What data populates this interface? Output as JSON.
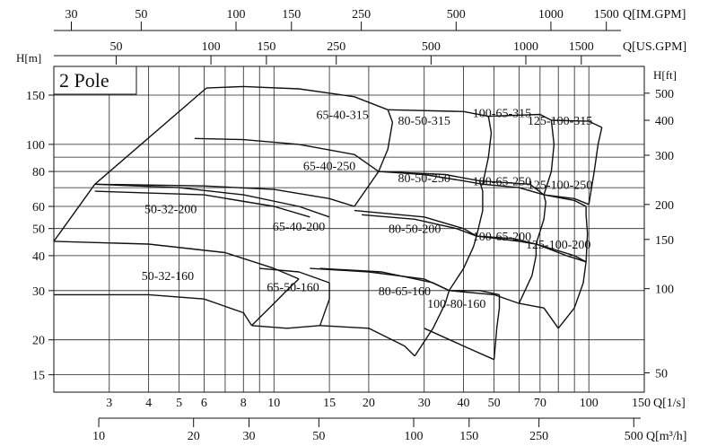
{
  "chart_data": {
    "type": "area",
    "title": "",
    "label": "2 Pole",
    "log_scale": true,
    "x_primary": {
      "label": "Q[1/s]",
      "lim": [
        2,
        150
      ],
      "ticks": [
        {
          "v": 3,
          "t": "3"
        },
        {
          "v": 4,
          "t": "4"
        },
        {
          "v": 5,
          "t": "5"
        },
        {
          "v": 6,
          "t": "6"
        },
        {
          "v": 8,
          "t": "8"
        },
        {
          "v": 10,
          "t": "10"
        },
        {
          "v": 15,
          "t": "15"
        },
        {
          "v": 20,
          "t": "20"
        },
        {
          "v": 30,
          "t": "30"
        },
        {
          "v": 40,
          "t": "40"
        },
        {
          "v": 50,
          "t": "50"
        },
        {
          "v": 70,
          "t": "70"
        },
        {
          "v": 100,
          "t": "100"
        },
        {
          "v": 150,
          "t": "150"
        }
      ],
      "grid": [
        3,
        4,
        5,
        6,
        7,
        8,
        9,
        10,
        15,
        20,
        30,
        40,
        50,
        60,
        70,
        80,
        90,
        100
      ]
    },
    "x_m3h": {
      "label": "Q[m³/h]",
      "ticks": [
        {
          "v": 10,
          "t": "10"
        },
        {
          "v": 20,
          "t": "20"
        },
        {
          "v": 30,
          "t": "30"
        },
        {
          "v": 50,
          "t": "50"
        },
        {
          "v": 100,
          "t": "100"
        },
        {
          "v": 150,
          "t": "150"
        },
        {
          "v": 250,
          "t": "250"
        },
        {
          "v": 500,
          "t": "500"
        }
      ]
    },
    "x_usgpm": {
      "label": "Q[US.GPM]",
      "ticks": [
        {
          "v": 50,
          "t": "50"
        },
        {
          "v": 100,
          "t": "100"
        },
        {
          "v": 150,
          "t": "150"
        },
        {
          "v": 250,
          "t": "250"
        },
        {
          "v": 500,
          "t": "500"
        },
        {
          "v": 1000,
          "t": "1000"
        },
        {
          "v": 1500,
          "t": "1500"
        }
      ]
    },
    "x_imgpm": {
      "label": "Q[IM.GPM]",
      "ticks": [
        {
          "v": 30,
          "t": "30"
        },
        {
          "v": 50,
          "t": "50"
        },
        {
          "v": 100,
          "t": "100"
        },
        {
          "v": 150,
          "t": "150"
        },
        {
          "v": 250,
          "t": "250"
        },
        {
          "v": 500,
          "t": "500"
        },
        {
          "v": 1000,
          "t": "1000"
        },
        {
          "v": 1500,
          "t": "1500"
        }
      ]
    },
    "y_primary": {
      "label": "H[m]",
      "lim": [
        13,
        190
      ],
      "ticks": [
        {
          "v": 15,
          "t": "15"
        },
        {
          "v": 20,
          "t": "20"
        },
        {
          "v": 30,
          "t": "30"
        },
        {
          "v": 40,
          "t": "40"
        },
        {
          "v": 50,
          "t": "50"
        },
        {
          "v": 60,
          "t": "60"
        },
        {
          "v": 80,
          "t": "80"
        },
        {
          "v": 100,
          "t": "100"
        },
        {
          "v": 150,
          "t": "150"
        }
      ],
      "grid": [
        15,
        20,
        30,
        40,
        50,
        60,
        70,
        80,
        90,
        100,
        150
      ]
    },
    "y_ft": {
      "label": "H[ft]",
      "ticks": [
        {
          "v": 50,
          "t": "50"
        },
        {
          "v": 100,
          "t": "100"
        },
        {
          "v": 150,
          "t": "150"
        },
        {
          "v": 200,
          "t": "200"
        },
        {
          "v": 300,
          "t": "300"
        },
        {
          "v": 400,
          "t": "400"
        },
        {
          "v": 500,
          "t": "500"
        }
      ]
    },
    "series": [
      {
        "name": "65-40-315",
        "label_at": [
          16.5,
          128
        ],
        "top": [
          [
            6.1,
            159
          ],
          [
            8,
            161
          ],
          [
            12,
            158
          ],
          [
            18,
            148
          ],
          [
            23,
            133
          ]
        ],
        "left": [
          [
            6.1,
            159
          ],
          [
            2.7,
            72
          ]
        ],
        "bottom": [
          [
            2.7,
            72
          ],
          [
            6,
            71
          ],
          [
            10,
            69
          ],
          [
            15,
            64
          ],
          [
            18,
            60
          ]
        ],
        "right": [
          [
            18,
            60
          ],
          [
            21.5,
            80
          ],
          [
            23,
            96
          ],
          [
            23.8,
            120
          ],
          [
            23,
            133
          ]
        ]
      },
      {
        "name": "80-50-315",
        "label_at": [
          30,
          122
        ],
        "top": [
          [
            23,
            133
          ],
          [
            40,
            131
          ],
          [
            48,
            126
          ]
        ],
        "left": [],
        "bottom": [
          [
            21.5,
            80
          ],
          [
            30,
            78
          ],
          [
            40,
            74
          ],
          [
            46,
            72
          ]
        ],
        "right": [
          [
            46,
            72
          ],
          [
            48,
            90
          ],
          [
            49,
            110
          ],
          [
            48,
            126
          ]
        ]
      },
      {
        "name": "100-65-315",
        "label_at": [
          53,
          130
        ],
        "top": [
          [
            48,
            126
          ],
          [
            70,
            128
          ],
          [
            76,
            122
          ]
        ],
        "left": [],
        "bottom": [
          [
            46,
            72
          ],
          [
            60,
            70
          ],
          [
            72,
            66
          ]
        ],
        "right": [
          [
            72,
            66
          ],
          [
            76,
            80
          ],
          [
            77.5,
            100
          ],
          [
            76,
            122
          ]
        ]
      },
      {
        "name": "125-100-315",
        "label_at": [
          81,
          122
        ],
        "top": [
          [
            76,
            122
          ],
          [
            100,
            121
          ],
          [
            110,
            115
          ]
        ],
        "left": [],
        "bottom": [
          [
            72,
            66
          ],
          [
            90,
            64
          ],
          [
            100,
            61
          ]
        ],
        "right": [
          [
            100,
            61
          ],
          [
            104,
            80
          ],
          [
            107,
            100
          ],
          [
            110,
            115
          ]
        ]
      },
      {
        "name": "65-40-250",
        "label_at": [
          15,
          84
        ],
        "top": [
          [
            5.6,
            105
          ],
          [
            8,
            104
          ],
          [
            12,
            100
          ],
          [
            18,
            92
          ],
          [
            21.5,
            80
          ]
        ],
        "left": [],
        "bottom": [
          [
            2.7,
            72
          ]
        ],
        "right": []
      },
      {
        "name": "80-50-250",
        "label_at": [
          30,
          76
        ],
        "top": [
          [
            21.5,
            80
          ],
          [
            35,
            78
          ],
          [
            45,
            74
          ]
        ],
        "left": [],
        "bottom": [
          [
            19,
            56
          ],
          [
            28,
            54
          ],
          [
            38,
            50
          ],
          [
            44,
            47
          ]
        ],
        "right": [
          [
            44,
            47
          ],
          [
            46,
            58
          ],
          [
            46,
            68
          ],
          [
            45,
            74
          ]
        ]
      },
      {
        "name": "100-65-250",
        "label_at": [
          53,
          74
        ],
        "top": [
          [
            45,
            74
          ],
          [
            65,
            72
          ],
          [
            72,
            66
          ]
        ],
        "left": [],
        "bottom": [
          [
            44,
            47
          ],
          [
            58,
            46
          ],
          [
            68,
            44
          ]
        ],
        "right": [
          [
            68,
            44
          ],
          [
            72,
            54
          ],
          [
            73,
            62
          ],
          [
            72,
            66
          ]
        ]
      },
      {
        "name": "125-100-250",
        "label_at": [
          81,
          72
        ],
        "top": [
          [
            72,
            66
          ],
          [
            90,
            63
          ],
          [
            98,
            60
          ]
        ],
        "left": [],
        "bottom": [
          [
            68,
            44
          ],
          [
            90,
            40
          ],
          [
            98,
            38
          ]
        ],
        "right": [
          [
            98,
            38
          ],
          [
            99,
            48
          ],
          [
            98,
            56
          ],
          [
            98,
            60
          ]
        ]
      },
      {
        "name": "50-32-200",
        "label_at": [
          4.7,
          59
        ],
        "top": [
          [
            2.7,
            72
          ],
          [
            5,
            70
          ],
          [
            8,
            66
          ],
          [
            12,
            60
          ],
          [
            15,
            55
          ]
        ],
        "left": [
          [
            2.7,
            72
          ],
          [
            2,
            45
          ]
        ],
        "bottom": [
          [
            2,
            45
          ]
        ],
        "right": []
      },
      {
        "name": "65-40-200",
        "label_at": [
          12,
          51
        ],
        "top": [
          [
            2.7,
            68
          ],
          [
            6,
            66
          ],
          [
            10,
            60
          ],
          [
            13,
            55
          ]
        ],
        "left": [],
        "bottom": [],
        "right": []
      },
      {
        "name": "80-50-200",
        "label_at": [
          28,
          50
        ],
        "top": [
          [
            18,
            58
          ],
          [
            30,
            55
          ],
          [
            40,
            50
          ],
          [
            44,
            47
          ]
        ],
        "left": [],
        "bottom": [
          [
            13,
            36
          ],
          [
            20,
            35
          ],
          [
            30,
            33
          ],
          [
            36,
            30
          ]
        ],
        "right": [
          [
            36,
            30
          ],
          [
            40,
            36
          ],
          [
            43,
            43
          ],
          [
            44,
            47
          ]
        ]
      },
      {
        "name": "100-65-200",
        "label_at": [
          53,
          47
        ],
        "top": [
          [
            44,
            47
          ],
          [
            60,
            45
          ],
          [
            68,
            44
          ]
        ],
        "left": [],
        "bottom": [
          [
            36,
            30
          ],
          [
            50,
            29
          ],
          [
            60,
            27
          ]
        ],
        "right": [
          [
            60,
            27
          ],
          [
            66,
            34
          ],
          [
            68,
            40
          ],
          [
            68,
            44
          ]
        ]
      },
      {
        "name": "125-100-200",
        "label_at": [
          80,
          44
        ],
        "top": [
          [
            68,
            44
          ],
          [
            85,
            40
          ],
          [
            98,
            38
          ]
        ],
        "left": [],
        "bottom": [
          [
            60,
            27
          ],
          [
            72,
            26
          ],
          [
            80,
            22
          ]
        ],
        "right": [
          [
            80,
            22
          ],
          [
            90,
            26
          ],
          [
            96,
            32
          ],
          [
            98,
            38
          ]
        ]
      },
      {
        "name": "50-32-160",
        "label_at": [
          4.6,
          34
        ],
        "top": [
          [
            2,
            45
          ],
          [
            4,
            44
          ],
          [
            7,
            41
          ],
          [
            10,
            36
          ],
          [
            12,
            33
          ]
        ],
        "left": [],
        "bottom": [
          [
            2,
            29
          ],
          [
            4,
            29
          ],
          [
            6,
            28
          ],
          [
            8,
            25
          ],
          [
            8.5,
            22.5
          ]
        ],
        "right": [
          [
            8.5,
            22.5
          ],
          [
            10,
            27
          ],
          [
            11.3,
            31
          ],
          [
            12,
            33
          ]
        ]
      },
      {
        "name": "65-50-160",
        "label_at": [
          11.5,
          31
        ],
        "top": [
          [
            9,
            36
          ],
          [
            12,
            35
          ],
          [
            15,
            32
          ]
        ],
        "left": [],
        "bottom": [
          [
            8.5,
            22.5
          ],
          [
            11,
            22
          ],
          [
            14,
            22.5
          ]
        ],
        "right": [
          [
            14,
            22.5
          ],
          [
            15,
            28
          ],
          [
            15,
            32
          ]
        ]
      },
      {
        "name": "80-65-160",
        "label_at": [
          26,
          30
        ],
        "top": [
          [
            14,
            36
          ],
          [
            22,
            35
          ],
          [
            32,
            32
          ],
          [
            36,
            30
          ]
        ],
        "left": [],
        "bottom": [
          [
            14,
            22.5
          ],
          [
            20,
            22
          ],
          [
            26,
            19
          ],
          [
            28,
            17.5
          ]
        ],
        "right": [
          [
            28,
            17.5
          ],
          [
            32,
            22
          ],
          [
            35,
            27
          ],
          [
            36,
            30
          ]
        ]
      },
      {
        "name": "100-80-160",
        "label_at": [
          38,
          27
        ],
        "top": [
          [
            36,
            30
          ],
          [
            45,
            30
          ],
          [
            52,
            29
          ]
        ],
        "left": [],
        "bottom": [
          [
            30,
            22
          ],
          [
            40,
            19
          ],
          [
            50,
            17
          ]
        ],
        "right": [
          [
            50,
            17
          ],
          [
            51,
            22
          ],
          [
            52,
            26
          ],
          [
            52,
            29
          ]
        ]
      }
    ]
  }
}
